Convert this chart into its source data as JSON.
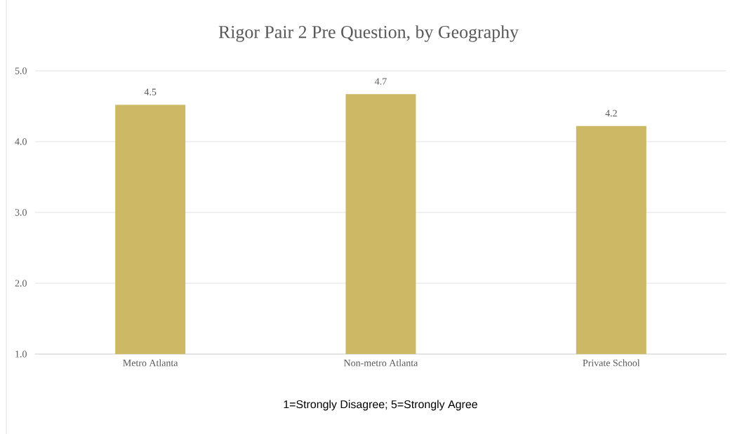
{
  "chart_data": {
    "type": "bar",
    "title": "Rigor Pair 2 Pre Question, by Geography",
    "xlabel": "1=Strongly Disagree; 5=Strongly Agree",
    "categories": [
      "Metro Atlanta",
      "Non-metro Atlanta",
      "Private School"
    ],
    "values": [
      4.52,
      4.67,
      4.22
    ],
    "value_labels": [
      "4.5",
      "4.7",
      "4.2"
    ],
    "color": "#cdb865",
    "ylim": [
      1,
      5
    ],
    "yticks": [
      {
        "value": 1,
        "label": "1.0"
      },
      {
        "value": 2,
        "label": "2.0"
      },
      {
        "value": 3,
        "label": "3.0"
      },
      {
        "value": 4,
        "label": "4.0"
      },
      {
        "value": 5,
        "label": "5.0"
      }
    ],
    "grid": "y"
  }
}
